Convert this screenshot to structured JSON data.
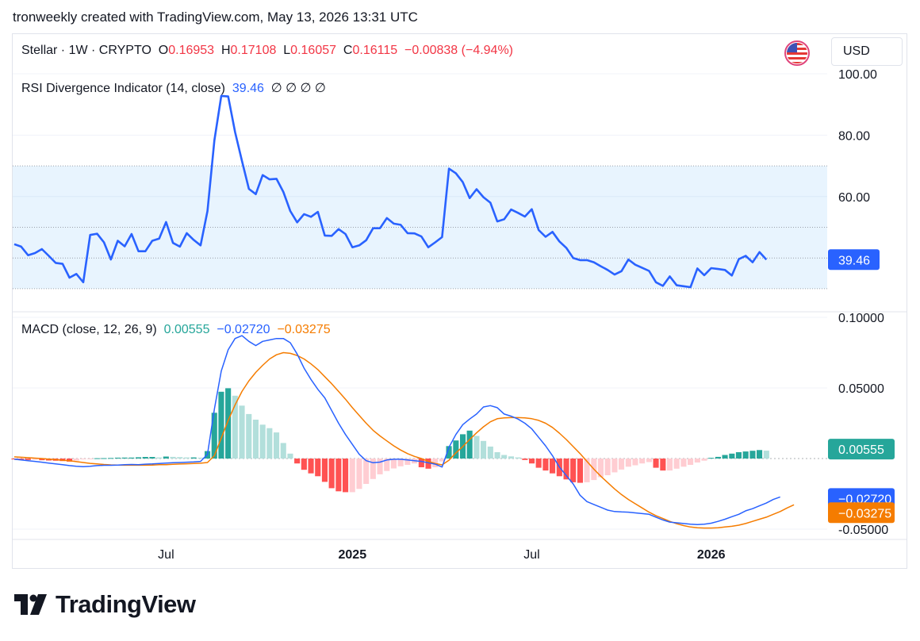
{
  "header": {
    "title": "tronweekly created with TradingView.com, May 13, 2026 13:31 UTC"
  },
  "legend": {
    "symbol": "Stellar · 1W · CRYPTO",
    "o_label": "O",
    "o_value": "0.16953",
    "h_label": "H",
    "h_value": "0.17108",
    "l_label": "L",
    "l_value": "0.16057",
    "c_label": "C",
    "c_value": "0.16115",
    "change": "−0.00838 (−4.94%)",
    "currency": "USD"
  },
  "rsi_legend": {
    "name": "RSI Divergence Indicator (14, close)",
    "value": "39.46",
    "placeholders": "∅  ∅  ∅  ∅"
  },
  "macd_legend": {
    "name": "MACD (close, 12, 26, 9)",
    "hist": "0.00555",
    "macd": "−0.02720",
    "signal": "−0.03275"
  },
  "brand": {
    "name": "TradingView"
  },
  "colors": {
    "rsi_line": "#2962ff",
    "rsi_band": "#2196f3",
    "macd_line": "#2962ff",
    "signal_line": "#f57c00",
    "hist_up_strong": "#26a69a",
    "hist_up_weak": "#b2dfdb",
    "hist_down_strong": "#ff5252",
    "hist_down_weak": "#ffcdd2",
    "text_red": "#f23645"
  },
  "chart_data": [
    {
      "type": "line",
      "title": "RSI Divergence Indicator (14, close)",
      "ylim": [
        30,
        100
      ],
      "yticks": [
        "100.00",
        "80.00",
        "60.00"
      ],
      "band": [
        30,
        70
      ],
      "levels": [
        70,
        50,
        40,
        30
      ],
      "last_value_label": "39.46",
      "xticks": [
        {
          "week": 22,
          "label": "Jul"
        },
        {
          "week": 49,
          "label": "2025"
        },
        {
          "week": 75,
          "label": "Jul"
        },
        {
          "week": 101,
          "label": "2026"
        }
      ],
      "values": [
        44.5,
        43.7,
        40.9,
        41.6,
        42.9,
        40.7,
        38.4,
        38.1,
        33.6,
        34.8,
        32.1,
        47.5,
        47.9,
        45.1,
        39.5,
        45.6,
        43.8,
        47.8,
        42.2,
        42.2,
        45.6,
        46.3,
        51.7,
        44.9,
        43.7,
        48.1,
        45.9,
        44.1,
        55.3,
        78.3,
        92.8,
        92.6,
        81.0,
        71.6,
        62.5,
        60.8,
        67.0,
        65.6,
        65.8,
        61.5,
        55.3,
        51.6,
        54.3,
        53.4,
        55.0,
        47.3,
        47.2,
        49.4,
        47.8,
        43.5,
        44.1,
        45.8,
        49.7,
        49.7,
        53.0,
        51.2,
        50.8,
        48.1,
        48.0,
        47.0,
        43.5,
        45.1,
        46.8,
        69.1,
        67.6,
        64.7,
        59.5,
        62.4,
        59.8,
        58.0,
        51.9,
        52.6,
        55.8,
        54.7,
        53.5,
        55.9,
        49.1,
        46.9,
        48.5,
        45.4,
        43.3,
        40.0,
        39.3,
        39.3,
        38.6,
        37.3,
        36.1,
        34.6,
        35.7,
        39.5,
        37.8,
        36.8,
        35.8,
        32.1,
        30.9,
        34.0,
        31.1,
        30.8,
        30.5,
        36.6,
        34.4,
        36.7,
        36.4,
        36.1,
        34.3,
        39.6,
        40.7,
        38.6,
        41.9,
        39.46
      ]
    },
    {
      "type": "bar",
      "title": "MACD (close, 12, 26, 9)",
      "ylim": [
        -0.055,
        0.1
      ],
      "yticks": [
        "0.10000",
        "0.05000",
        "-0.05000"
      ],
      "last_labels": {
        "hist": "0.00555",
        "macd": "−0.02720",
        "signal": "−0.03275"
      },
      "series": [
        {
          "name": "Histogram",
          "values": [
            -0.0006,
            -0.0008,
            -0.001,
            -0.0008,
            -0.0012,
            -0.0014,
            -0.0016,
            -0.0018,
            -0.0022,
            -0.0014,
            -0.0006,
            -0.0002,
            0.0002,
            0.0003,
            0.0004,
            0.0006,
            0.0007,
            0.0007,
            0.0009,
            0.0011,
            0.0011,
            0.0008,
            0.0014,
            0.0012,
            0.001,
            0.0008,
            0.0008,
            0.0006,
            0.0053,
            0.0324,
            0.0473,
            0.0498,
            0.0445,
            0.0375,
            0.0315,
            0.0275,
            0.024,
            0.0215,
            0.0185,
            0.011,
            0.0035,
            -0.0035,
            -0.008,
            -0.0105,
            -0.0125,
            -0.0165,
            -0.021,
            -0.0232,
            -0.0238,
            -0.0238,
            -0.0215,
            -0.018,
            -0.0145,
            -0.0112,
            -0.0088,
            -0.007,
            -0.0055,
            -0.0045,
            -0.0035,
            -0.0062,
            -0.0072,
            -0.0062,
            -0.002,
            0.0088,
            0.0128,
            0.0172,
            0.0198,
            0.016,
            0.0125,
            0.0085,
            0.0045,
            0.0025,
            0.0015,
            0.0008,
            -0.001,
            -0.0035,
            -0.0065,
            -0.0085,
            -0.0105,
            -0.0125,
            -0.0148,
            -0.0168,
            -0.0172,
            -0.0168,
            -0.0152,
            -0.0132,
            -0.0118,
            -0.0098,
            -0.0078,
            -0.0058,
            -0.0048,
            -0.0035,
            -0.0025,
            -0.0065,
            -0.0085,
            -0.0085,
            -0.0072,
            -0.0058,
            -0.0045,
            -0.0028,
            -0.0015,
            0.0005,
            0.0012,
            0.0025,
            0.0035,
            0.0045,
            0.005,
            0.0055,
            0.006,
            0.00555
          ]
        },
        {
          "name": "MACD",
          "values": [
            -0.0005,
            -0.001,
            -0.0015,
            -0.002,
            -0.0026,
            -0.0032,
            -0.0038,
            -0.0044,
            -0.005,
            -0.0055,
            -0.0058,
            -0.0055,
            -0.005,
            -0.0048,
            -0.0048,
            -0.0046,
            -0.0043,
            -0.0042,
            -0.0043,
            -0.004,
            -0.0038,
            -0.0035,
            -0.0032,
            -0.003,
            -0.0028,
            -0.0026,
            -0.0024,
            -0.002,
            0.003,
            0.035,
            0.062,
            0.077,
            0.085,
            0.087,
            0.083,
            0.08,
            0.083,
            0.084,
            0.085,
            0.085,
            0.082,
            0.074,
            0.064,
            0.056,
            0.049,
            0.043,
            0.034,
            0.025,
            0.017,
            0.01,
            0.003,
            -0.0015,
            -0.003,
            -0.0025,
            -0.001,
            -0.0005,
            -0.0005,
            -0.001,
            -0.0015,
            -0.002,
            -0.003,
            -0.004,
            -0.006,
            0.008,
            0.017,
            0.024,
            0.028,
            0.0315,
            0.0365,
            0.0375,
            0.036,
            0.0315,
            0.03,
            0.028,
            0.025,
            0.021,
            0.015,
            0.009,
            0.002,
            -0.006,
            -0.012,
            -0.018,
            -0.026,
            -0.0305,
            -0.0325,
            -0.0345,
            -0.0365,
            -0.0375,
            -0.0378,
            -0.038,
            -0.0385,
            -0.039,
            -0.0395,
            -0.0415,
            -0.0435,
            -0.045,
            -0.0455,
            -0.046,
            -0.0465,
            -0.0468,
            -0.0465,
            -0.0458,
            -0.0445,
            -0.043,
            -0.0412,
            -0.0395,
            -0.037,
            -0.0355,
            -0.0335,
            -0.0315,
            -0.029,
            -0.0272
          ]
        },
        {
          "name": "Signal",
          "values": [
            0.0012,
            0.0009,
            0.0006,
            0.0003,
            0.0,
            -0.0004,
            -0.0008,
            -0.0012,
            -0.0016,
            -0.0022,
            -0.0028,
            -0.0034,
            -0.0038,
            -0.0042,
            -0.0045,
            -0.0046,
            -0.0047,
            -0.0047,
            -0.0047,
            -0.0047,
            -0.0046,
            -0.0044,
            -0.0043,
            -0.0041,
            -0.0039,
            -0.0037,
            -0.0035,
            -0.0033,
            -0.0028,
            0.002,
            0.0145,
            0.027,
            0.038,
            0.0475,
            0.055,
            0.061,
            0.066,
            0.0705,
            0.0735,
            0.075,
            0.0745,
            0.073,
            0.0705,
            0.067,
            0.063,
            0.058,
            0.053,
            0.0475,
            0.042,
            0.036,
            0.0305,
            0.025,
            0.02,
            0.016,
            0.0125,
            0.009,
            0.006,
            0.0035,
            0.0015,
            0.0,
            -0.002,
            -0.0035,
            -0.0045,
            -0.0012,
            0.004,
            0.0085,
            0.0135,
            0.0182,
            0.0225,
            0.026,
            0.0282,
            0.0288,
            0.029,
            0.029,
            0.0288,
            0.0282,
            0.027,
            0.025,
            0.022,
            0.018,
            0.0135,
            0.0085,
            0.0035,
            -0.002,
            -0.0075,
            -0.0125,
            -0.017,
            -0.0215,
            -0.0255,
            -0.029,
            -0.032,
            -0.035,
            -0.038,
            -0.0405,
            -0.0425,
            -0.0445,
            -0.0462,
            -0.0475,
            -0.0485,
            -0.049,
            -0.0492,
            -0.0492,
            -0.049,
            -0.0485,
            -0.048,
            -0.0472,
            -0.046,
            -0.0445,
            -0.043,
            -0.0415,
            -0.0395,
            -0.0375,
            -0.035,
            -0.03275
          ]
        }
      ]
    }
  ]
}
